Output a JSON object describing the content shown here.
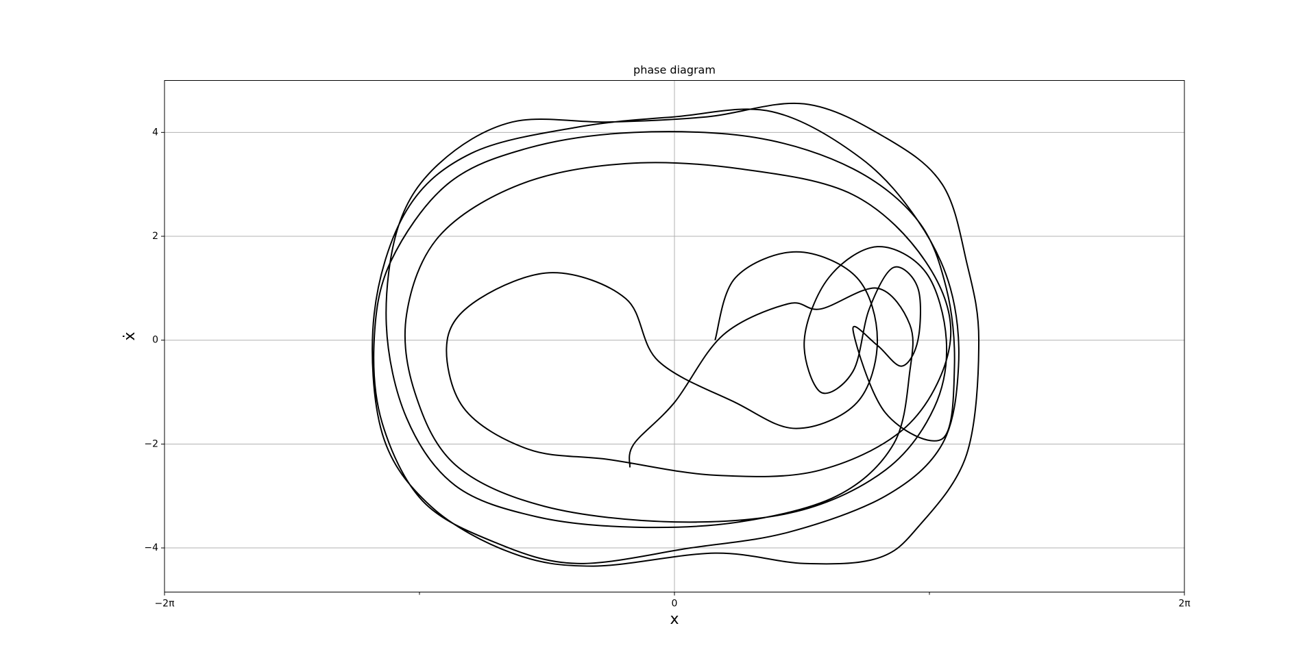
{
  "chart_data": {
    "type": "line",
    "title": "phase diagram",
    "x_label": "x",
    "y_label": "ẋ",
    "x": [
      0.5,
      0.75,
      1.5,
      2.25,
      2.5,
      2.25,
      1.5,
      0.75,
      -0.2,
      -0.6,
      -1.5,
      -2.4,
      -2.8,
      -2.6,
      -1.8,
      -0.8,
      0.5,
      1.8,
      2.9,
      3.4,
      3.1,
      2.2,
      0.8,
      -0.6,
      -1.9,
      -2.9,
      -3.3,
      -3.2,
      -2.7,
      -1.6,
      0.0,
      1.5,
      2.6,
      3.2,
      3.35,
      3.1,
      2.5,
      1.9,
      1.6,
      1.8,
      2.2,
      2.4,
      2.7,
      3.0,
      3.0,
      2.8,
      2.5,
      2.2,
      2.6,
      3.3,
      3.45,
      3.35,
      3.0,
      2.2,
      1.0,
      -0.5,
      -1.8,
      -2.8,
      -3.5,
      -3.7,
      -3.6,
      -3.1,
      -2.2,
      -1.2,
      0.2,
      1.4,
      2.6,
      3.3,
      3.5,
      3.4,
      3.0,
      2.3,
      1.2,
      0.0,
      -1.2,
      -2.5,
      -3.3,
      -3.7,
      -3.6,
      -3.0,
      -2.0,
      -1.0,
      0.5,
      1.6,
      2.5,
      3.0,
      3.6,
      3.75,
      3.6,
      3.3,
      2.6,
      1.6,
      0.4,
      -0.8,
      -2.0,
      -2.9,
      -3.4,
      -3.55,
      -3.3,
      -2.7,
      -1.7,
      -0.5,
      0.8,
      2.0,
      2.7,
      2.9,
      2.9,
      2.5,
      1.8,
      1.4,
      0.6,
      0.0,
      -0.5,
      -0.55
    ],
    "values": [
      0,
      1.2,
      1.7,
      1.2,
      0,
      -1.2,
      -1.7,
      -1.2,
      -0.4,
      0.8,
      1.3,
      0.8,
      0,
      -1.3,
      -2.1,
      -2.3,
      -2.6,
      -2.5,
      -1.6,
      0,
      1.5,
      2.8,
      3.3,
      3.4,
      3.0,
      2.0,
      0.5,
      -1.0,
      -2.4,
      -3.2,
      -3.5,
      -3.3,
      -2.5,
      -1.3,
      0,
      1.3,
      1.8,
      1.2,
      0,
      -1.0,
      -0.6,
      0.6,
      1.4,
      1.0,
      0,
      -0.5,
      -0.1,
      0.2,
      -1.4,
      -1.9,
      -0.5,
      1.0,
      2.3,
      3.3,
      3.9,
      4.0,
      3.7,
      3.0,
      1.5,
      0,
      -1.6,
      -3.1,
      -3.9,
      -4.3,
      -4.0,
      -3.7,
      -3.0,
      -2.0,
      -0.5,
      1.0,
      2.3,
      3.5,
      4.4,
      4.3,
      4.1,
      3.6,
      2.5,
      0.5,
      -1.8,
      -3.2,
      -4.1,
      -4.35,
      -4.1,
      -4.3,
      -4.2,
      -3.6,
      -2.2,
      0,
      1.5,
      3.0,
      3.9,
      4.55,
      4.3,
      4.2,
      4.2,
      3.4,
      2.2,
      0.3,
      -1.5,
      -2.8,
      -3.4,
      -3.6,
      -3.5,
      -3.0,
      -2.0,
      -0.6,
      0.3,
      1.0,
      0.6,
      0.7,
      0.1,
      -1.2,
      -2.0,
      -2.45
    ],
    "color": "#000000",
    "xlim": [
      -6.2832,
      6.2832
    ],
    "xticks": [
      {
        "value": -6.2832,
        "label": "−2π"
      },
      0,
      {
        "value": 6.2832,
        "label": "2π"
      }
    ],
    "x_minor_ticks": [
      -3.1416,
      3.1416
    ],
    "ylim": [
      -4.85,
      5.0
    ],
    "yticks": [
      {
        "value": -4,
        "label": "−4"
      },
      {
        "value": -2,
        "label": "−2"
      },
      0,
      2,
      4
    ],
    "grid": true
  }
}
